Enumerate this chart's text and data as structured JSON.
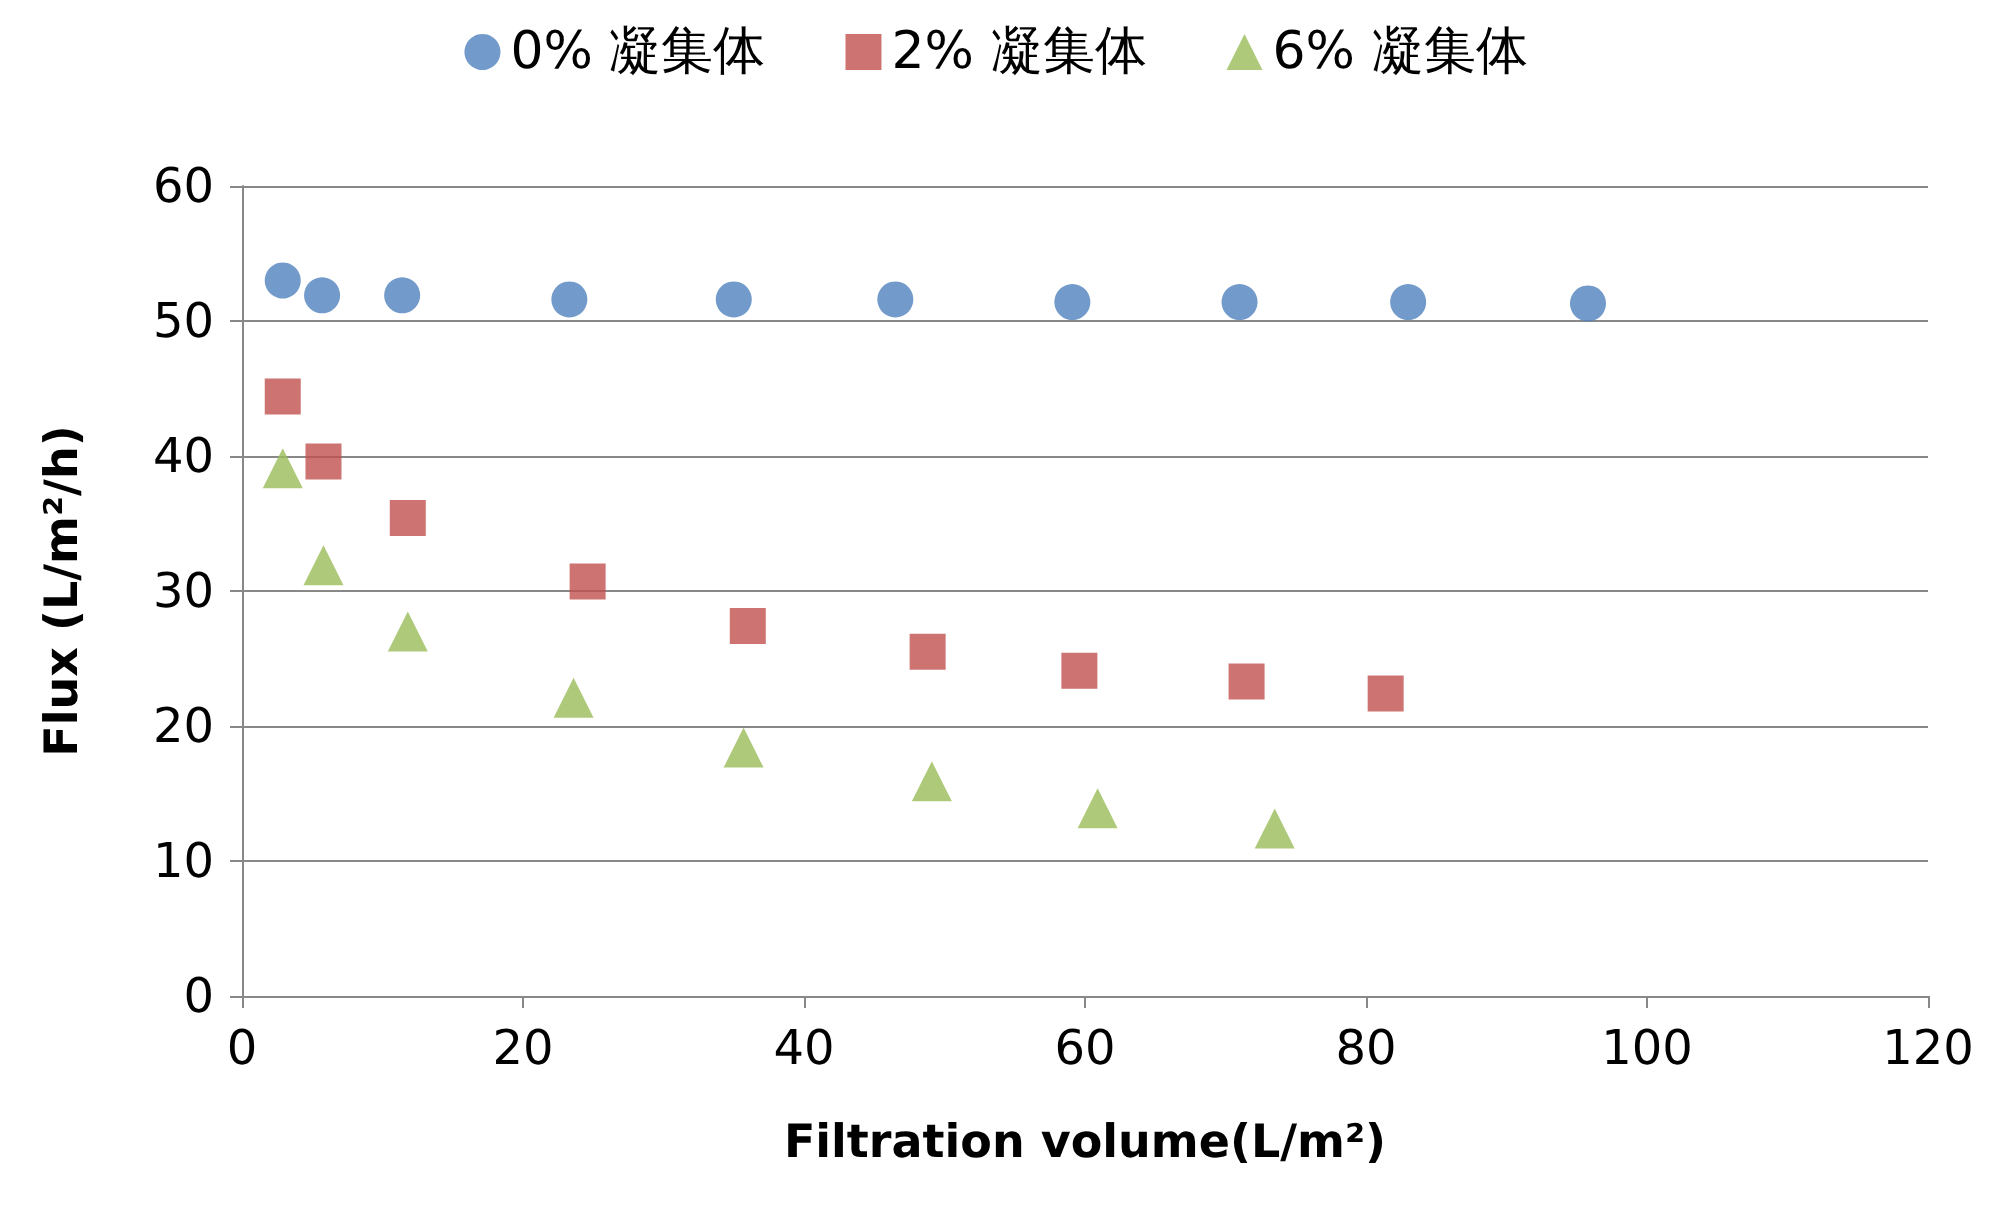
{
  "chart_data": {
    "type": "scatter",
    "xlabel": "Filtration volume(L/m²)",
    "ylabel": "Flux (L/m²/h)",
    "xlim": [
      0,
      120
    ],
    "xticks": [
      0,
      20,
      40,
      60,
      80,
      100,
      120
    ],
    "ylim": [
      0,
      60
    ],
    "yticks": [
      0,
      10,
      20,
      30,
      40,
      50,
      60
    ],
    "grid": "y",
    "legend": "top",
    "series": [
      {
        "name": "0% 凝集体",
        "color": "#4f81bd",
        "marker": "circle",
        "x": [
          2.9,
          5.7,
          11.4,
          23.3,
          35.0,
          46.5,
          59.1,
          71.0,
          83.0,
          95.8
        ],
        "values": [
          53.0,
          51.9,
          51.9,
          51.6,
          51.6,
          51.6,
          51.4,
          51.4,
          51.4,
          51.3
        ]
      },
      {
        "name": "2% 凝集体",
        "color": "#c0504d",
        "marker": "square",
        "x": [
          2.9,
          5.8,
          11.8,
          24.6,
          36.0,
          48.8,
          59.6,
          71.5,
          81.4
        ],
        "values": [
          44.4,
          39.6,
          35.4,
          30.7,
          27.4,
          25.5,
          24.1,
          23.3,
          22.4
        ]
      },
      {
        "name": "6% 凝集体",
        "color": "#9bbb59",
        "marker": "triangle",
        "x": [
          2.9,
          5.8,
          11.8,
          23.6,
          35.7,
          49.1,
          60.9,
          73.5
        ],
        "values": [
          39.1,
          31.9,
          27.0,
          22.1,
          18.4,
          15.9,
          13.9,
          12.4
        ]
      }
    ]
  }
}
